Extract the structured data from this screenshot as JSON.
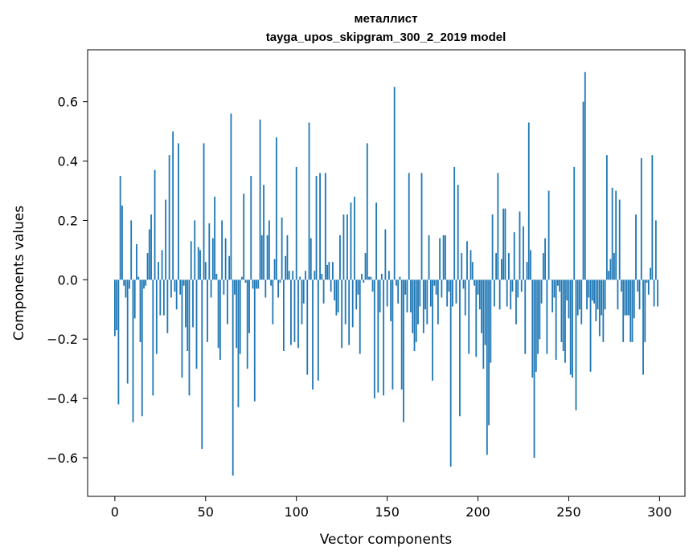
{
  "colors": {
    "bar": "#1f77b4",
    "axes": "#000000",
    "background": "#ffffff"
  },
  "chart_data": {
    "type": "bar",
    "title": "металлист",
    "subtitle": "tayga_upos_skipgram_300_2_2019 model",
    "xlabel": "Vector components",
    "ylabel": "Components values",
    "xlim": [
      -15,
      314
    ],
    "ylim": [
      -0.73,
      0.775
    ],
    "xticks": [
      0,
      50,
      100,
      150,
      200,
      250,
      300
    ],
    "xtick_labels": [
      "0",
      "50",
      "100",
      "150",
      "200",
      "250",
      "300"
    ],
    "yticks": [
      -0.6,
      -0.4,
      -0.2,
      0.0,
      0.2,
      0.4,
      0.6
    ],
    "ytick_labels": [
      "−0.6",
      "−0.4",
      "−0.2",
      "0.0",
      "0.2",
      "0.4",
      "0.6"
    ],
    "values": [
      -0.19,
      -0.17,
      -0.42,
      0.35,
      0.25,
      -0.02,
      -0.06,
      -0.35,
      -0.03,
      0.2,
      -0.48,
      -0.13,
      0.12,
      0.01,
      -0.21,
      -0.46,
      -0.03,
      -0.02,
      0.09,
      0.17,
      0.22,
      -0.39,
      0.37,
      -0.25,
      0.06,
      -0.12,
      0.1,
      -0.12,
      0.27,
      -0.18,
      0.42,
      -0.06,
      0.5,
      -0.04,
      -0.1,
      0.46,
      -0.05,
      -0.33,
      -0.02,
      -0.16,
      -0.24,
      -0.39,
      0.13,
      -0.16,
      0.2,
      -0.3,
      0.11,
      0.1,
      -0.57,
      0.46,
      0.06,
      -0.21,
      0.19,
      -0.06,
      0.14,
      0.28,
      0.02,
      -0.23,
      -0.27,
      0.2,
      -0.05,
      0.14,
      -0.15,
      0.08,
      0.56,
      -0.66,
      -0.05,
      -0.23,
      -0.43,
      -0.25,
      0.01,
      0.29,
      -0.01,
      -0.3,
      -0.18,
      0.35,
      -0.03,
      -0.41,
      -0.03,
      -0.03,
      0.54,
      0.15,
      0.32,
      -0.06,
      0.15,
      0.2,
      -0.02,
      -0.15,
      0.07,
      0.48,
      -0.06,
      -0.01,
      0.21,
      -0.24,
      0.08,
      0.15,
      0.03,
      -0.22,
      0.03,
      -0.21,
      0.38,
      -0.23,
      0.01,
      -0.15,
      -0.08,
      0.03,
      -0.32,
      0.53,
      0.14,
      -0.37,
      0.03,
      0.35,
      -0.34,
      0.36,
      0.02,
      -0.08,
      0.36,
      0.05,
      0.06,
      -0.04,
      0.06,
      -0.07,
      -0.12,
      -0.11,
      0.15,
      -0.23,
      0.22,
      -0.15,
      0.22,
      -0.22,
      0.26,
      -0.16,
      0.28,
      -0.1,
      -0.05,
      -0.25,
      0.02,
      -0.01,
      0.09,
      0.46,
      0.01,
      0.01,
      -0.04,
      -0.4,
      0.26,
      -0.38,
      -0.11,
      0.02,
      -0.39,
      0.17,
      -0.09,
      0.03,
      -0.14,
      -0.37,
      0.65,
      -0.02,
      -0.08,
      0.01,
      -0.37,
      -0.48,
      -0.05,
      -0.11,
      0.36,
      -0.11,
      -0.18,
      -0.24,
      -0.21,
      -0.15,
      -0.09,
      0.36,
      -0.18,
      -0.1,
      -0.15,
      0.15,
      -0.09,
      -0.34,
      -0.02,
      -0.05,
      -0.15,
      0.14,
      -0.06,
      0.15,
      0.15,
      -0.09,
      -0.04,
      -0.63,
      -0.09,
      0.38,
      -0.08,
      0.32,
      -0.46,
      0.09,
      -0.03,
      -0.12,
      0.13,
      -0.25,
      0.1,
      0.06,
      -0.02,
      -0.26,
      -0.05,
      -0.1,
      -0.18,
      -0.3,
      -0.22,
      -0.59,
      -0.49,
      -0.28,
      0.22,
      -0.09,
      0.09,
      0.36,
      -0.1,
      0.07,
      0.24,
      0.24,
      -0.09,
      0.09,
      -0.1,
      -0.04,
      0.16,
      -0.15,
      -0.06,
      0.23,
      -0.04,
      0.18,
      -0.25,
      0.06,
      0.53,
      0.1,
      -0.33,
      -0.6,
      -0.31,
      -0.25,
      -0.2,
      -0.08,
      0.09,
      0.14,
      -0.25,
      0.3,
      0.0,
      -0.11,
      -0.06,
      -0.27,
      -0.02,
      -0.04,
      -0.21,
      -0.24,
      -0.28,
      -0.07,
      -0.13,
      -0.32,
      -0.33,
      0.38,
      -0.44,
      -0.12,
      -0.1,
      -0.15,
      0.6,
      0.7,
      -0.1,
      -0.06,
      -0.31,
      -0.07,
      -0.08,
      -0.14,
      -0.1,
      -0.19,
      -0.12,
      -0.21,
      -0.1,
      0.42,
      0.03,
      0.07,
      0.31,
      0.09,
      0.3,
      -0.1,
      0.27,
      -0.04,
      -0.21,
      -0.12,
      -0.12,
      -0.12,
      -0.21,
      -0.21,
      -0.13,
      0.22,
      -0.04,
      -0.1,
      0.41,
      -0.32,
      -0.21,
      -0.01,
      -0.05,
      0.04,
      0.42,
      -0.09,
      0.2,
      -0.09
    ]
  }
}
